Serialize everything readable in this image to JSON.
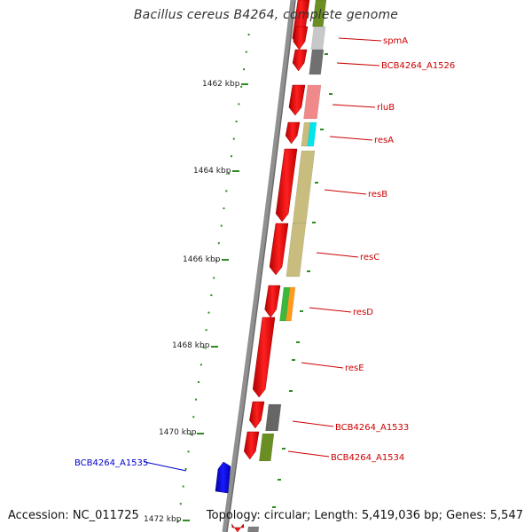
{
  "title": "Bacillus cereus B4264, complete genome",
  "accession": "Accession: NC_011725",
  "topology": "Topology: circular; Length: 5,419,036 bp; Genes: 5,547",
  "colors": {
    "backbone": "#808080",
    "forward_strand": "#ff0000",
    "reverse_strand": "#0000ff",
    "tick": "#2e8b22",
    "label_forward": "#cc0000",
    "label_reverse": "#0000cc"
  },
  "scale_ticks": [
    {
      "label": "1462 kbp"
    },
    {
      "label": "1464 kbp"
    },
    {
      "label": "1466 kbp"
    },
    {
      "label": "1468 kbp"
    },
    {
      "label": "1470 kbp"
    },
    {
      "label": "1472 kbp"
    }
  ],
  "genes": [
    {
      "name": "spmA",
      "strand": "forward",
      "cog_color": "#c8c8c8"
    },
    {
      "name": "BCB4264_A1526",
      "strand": "forward",
      "cog_color": "#707070"
    },
    {
      "name": "rluB",
      "strand": "forward",
      "cog_color": "#f08a8a"
    },
    {
      "name": "resA",
      "strand": "forward",
      "cog_color": "#00e5ee"
    },
    {
      "name": "resB",
      "strand": "forward",
      "cog_color": "#c8bd7e"
    },
    {
      "name": "resC",
      "strand": "forward",
      "cog_color": "#c8bd7e"
    },
    {
      "name": "resD",
      "strand": "forward",
      "cog_color": "#3cb83c"
    },
    {
      "name": "resE",
      "strand": "forward",
      "cog_color": ""
    },
    {
      "name": "BCB4264_A1533",
      "strand": "forward",
      "cog_color": "#666666"
    },
    {
      "name": "BCB4264_A1534",
      "strand": "forward",
      "cog_color": "#6b8e23"
    },
    {
      "name": "BCB4264_A1535",
      "strand": "reverse",
      "cog_color": ""
    }
  ]
}
